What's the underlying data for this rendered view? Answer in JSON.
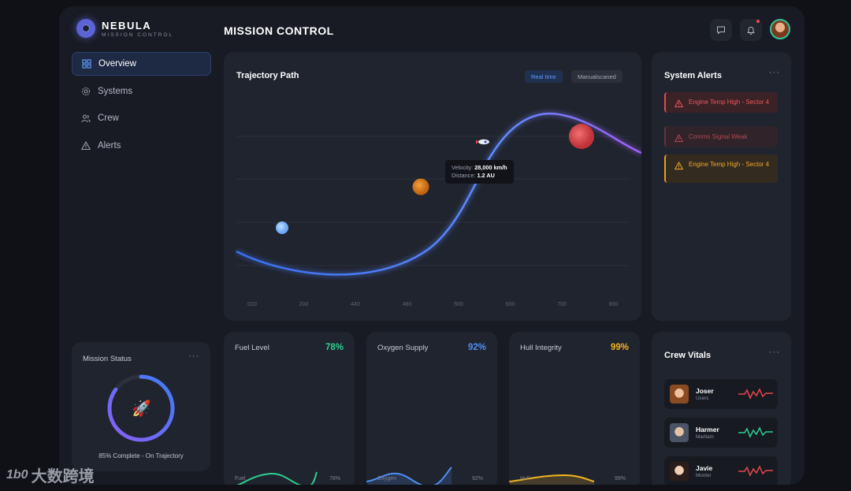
{
  "brand": {
    "name": "NEBULA",
    "subtitle": "MISSION CONTROL"
  },
  "header": {
    "title": "MISSION CONTROL"
  },
  "nav": [
    {
      "label": "Overview",
      "icon": "grid-icon",
      "active": true
    },
    {
      "label": "Systems",
      "icon": "gear-icon",
      "active": false
    },
    {
      "label": "Crew",
      "icon": "users-icon",
      "active": false
    },
    {
      "label": "Alerts",
      "icon": "warning-icon",
      "active": false
    }
  ],
  "trajectory": {
    "title": "Trajectory Path",
    "toggle_realtime": "Real time",
    "toggle_manual": "Manualscaned",
    "x_ticks": [
      "020",
      "200",
      "440",
      "460",
      "500",
      "600",
      "700",
      "800"
    ],
    "tooltip": {
      "velocity_label": "Velocity:",
      "velocity_value": "28,000 km/h",
      "distance_label": "Distance:",
      "distance_value": "1.2 AU"
    }
  },
  "alerts": {
    "title": "System Alerts",
    "more": "···",
    "items": [
      {
        "text": "Engine Temp High - Sector 4",
        "severity": "critical"
      },
      {
        "text": "Comms Signal Weak",
        "severity": "muted"
      },
      {
        "text": "Engine Temp High - Sector 4",
        "severity": "warning"
      }
    ]
  },
  "mission": {
    "title": "Mission Status",
    "more": "···",
    "progress": 85,
    "caption": "85% Complete - On Trajectory"
  },
  "metrics": [
    {
      "label": "Fuel Level",
      "value": "78%",
      "mini_label": "Fuel",
      "mini_value": "78%",
      "color": "#2ecf8f"
    },
    {
      "label": "Oxygen Supply",
      "value": "92%",
      "mini_label": "Oxygen",
      "mini_value": "92%",
      "color": "#4f8ff7"
    },
    {
      "label": "Hull Integrity",
      "value": "99%",
      "mini_label": "Hull",
      "mini_value": "99%",
      "color": "#f2b51f"
    }
  ],
  "crew": {
    "title": "Crew Vitals",
    "more": "···",
    "members": [
      {
        "name": "Joser",
        "role": "Users",
        "pulse_color": "#e8474c"
      },
      {
        "name": "Harmer",
        "role": "Maritam",
        "pulse_color": "#2ecf8f"
      },
      {
        "name": "Javie",
        "role": "Monter",
        "pulse_color": "#e8474c"
      }
    ]
  },
  "watermark": {
    "logo": "1b0",
    "text": "大数跨境"
  }
}
